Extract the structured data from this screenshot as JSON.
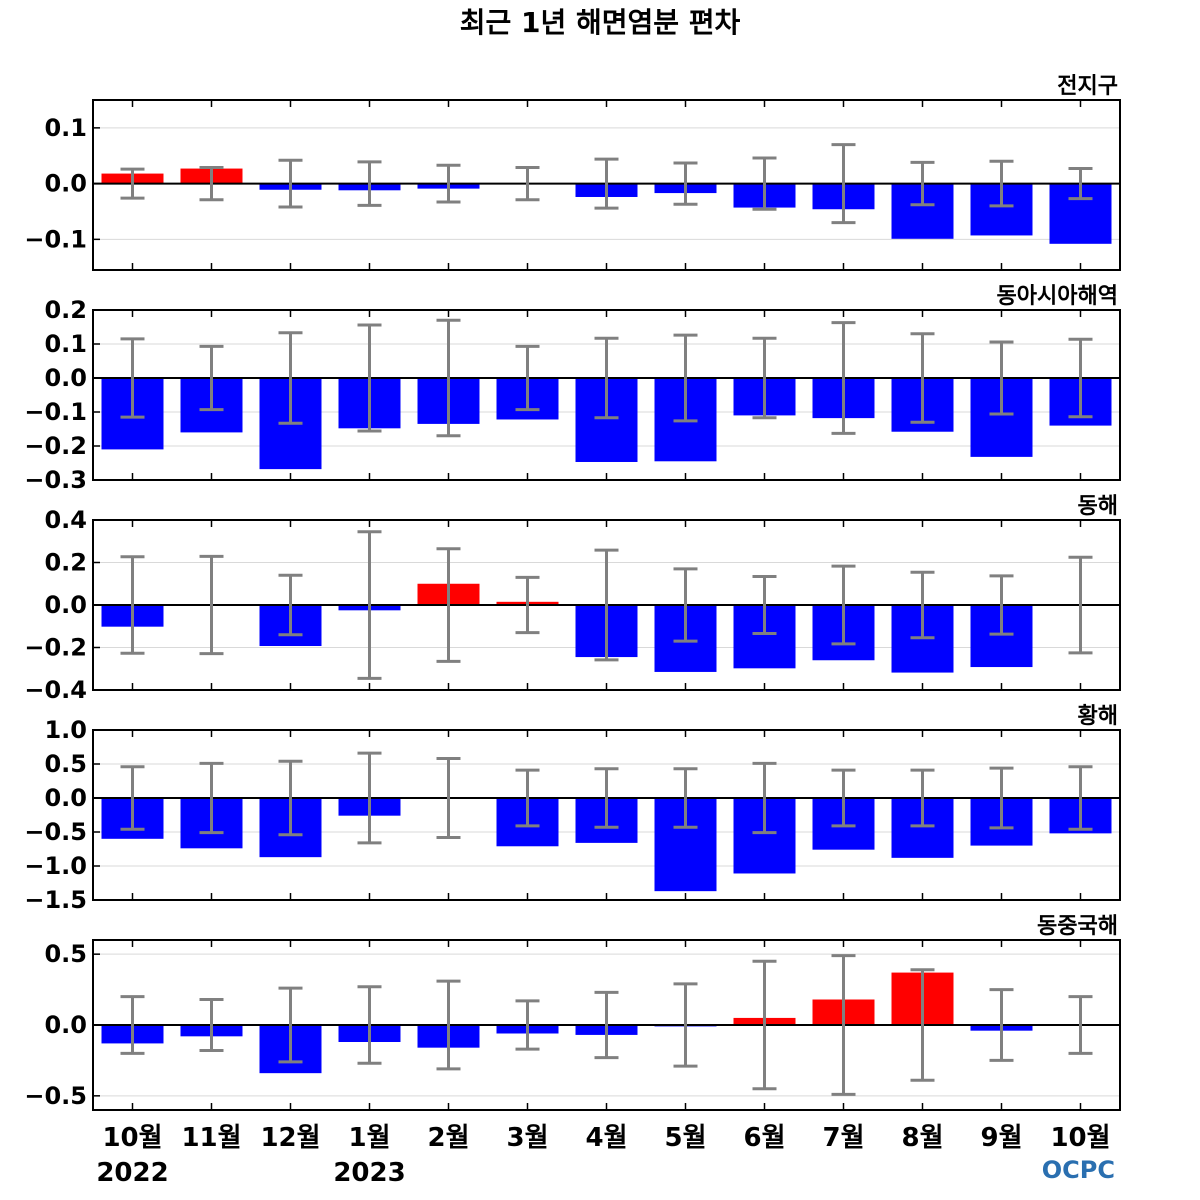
{
  "chart_data": {
    "type": "bar",
    "title": "최근 1년 해면염분 편차",
    "categories": [
      "10월",
      "11월",
      "12월",
      "1월",
      "2월",
      "3월",
      "4월",
      "5월",
      "6월",
      "7월",
      "8월",
      "9월",
      "10월"
    ],
    "year_labels": [
      {
        "index": 0,
        "text": "2022"
      },
      {
        "index": 3,
        "text": "2023"
      }
    ],
    "logo_text": "OCPC",
    "colors": {
      "positive": "#ff0000",
      "negative": "#0000ff",
      "errorbar": "#808080",
      "zero_line": "#000000",
      "grid": "#d9d9d9"
    },
    "grid": true,
    "panels": [
      {
        "name": "전지구",
        "ylim": [
          -0.155,
          0.15
        ],
        "yticks": [
          0.1,
          0.0,
          -0.1
        ],
        "ytick_labels": [
          "0.1",
          "0.0",
          "−0.1"
        ],
        "values": [
          0.018,
          0.027,
          -0.011,
          -0.012,
          -0.009,
          0.001,
          -0.024,
          -0.017,
          -0.043,
          -0.046,
          -0.099,
          -0.093,
          -0.108
        ],
        "errors": [
          0.026,
          0.029,
          0.042,
          0.039,
          0.033,
          0.029,
          0.044,
          0.037,
          0.046,
          0.07,
          0.038,
          0.04,
          0.027
        ]
      },
      {
        "name": "동아시아해역",
        "ylim": [
          -0.3,
          0.2
        ],
        "yticks": [
          0.2,
          0.1,
          0.0,
          -0.1,
          -0.2,
          -0.3
        ],
        "ytick_labels": [
          "0.2",
          "0.1",
          "0.0",
          "−0.1",
          "−0.2",
          "−0.3"
        ],
        "values": [
          -0.21,
          -0.16,
          -0.268,
          -0.148,
          -0.135,
          -0.122,
          -0.247,
          -0.245,
          -0.11,
          -0.118,
          -0.158,
          -0.232,
          -0.14
        ],
        "errors": [
          0.115,
          0.093,
          0.133,
          0.156,
          0.17,
          0.093,
          0.117,
          0.126,
          0.117,
          0.163,
          0.13,
          0.106,
          0.114
        ]
      },
      {
        "name": "동해",
        "ylim": [
          -0.4,
          0.4
        ],
        "yticks": [
          0.4,
          0.2,
          0.0,
          -0.2,
          -0.4
        ],
        "ytick_labels": [
          "0.4",
          "0.2",
          "0.0",
          "−0.2",
          "−0.4"
        ],
        "values": [
          -0.102,
          -0.003,
          -0.193,
          -0.025,
          0.1,
          0.015,
          -0.245,
          -0.315,
          -0.298,
          -0.26,
          -0.318,
          -0.292,
          -0.002
        ],
        "errors": [
          0.227,
          0.229,
          0.14,
          0.345,
          0.265,
          0.13,
          0.258,
          0.17,
          0.134,
          0.183,
          0.154,
          0.137,
          0.225
        ]
      },
      {
        "name": "황해",
        "ylim": [
          -1.5,
          1.0
        ],
        "yticks": [
          1.0,
          0.5,
          0.0,
          -0.5,
          -1.0,
          -1.5
        ],
        "ytick_labels": [
          "1.0",
          "0.5",
          "0.0",
          "−0.5",
          "−1.0",
          "−1.5"
        ],
        "values": [
          -0.6,
          -0.74,
          -0.87,
          -0.26,
          0.01,
          -0.71,
          -0.66,
          -1.37,
          -1.11,
          -0.76,
          -0.88,
          -0.7,
          -0.52
        ],
        "errors": [
          0.46,
          0.51,
          0.54,
          0.66,
          0.58,
          0.41,
          0.43,
          0.43,
          0.51,
          0.41,
          0.41,
          0.44,
          0.46
        ]
      },
      {
        "name": "동중국해",
        "ylim": [
          -0.6,
          0.6
        ],
        "yticks": [
          0.5,
          0.0,
          -0.5
        ],
        "ytick_labels": [
          "0.5",
          "0.0",
          "−0.5"
        ],
        "values": [
          -0.13,
          -0.08,
          -0.34,
          -0.12,
          -0.16,
          -0.06,
          -0.07,
          -0.01,
          0.05,
          0.18,
          0.37,
          -0.04,
          0.0
        ],
        "errors": [
          0.2,
          0.18,
          0.26,
          0.27,
          0.31,
          0.17,
          0.23,
          0.29,
          0.45,
          0.49,
          0.39,
          0.25,
          0.2
        ]
      }
    ]
  }
}
